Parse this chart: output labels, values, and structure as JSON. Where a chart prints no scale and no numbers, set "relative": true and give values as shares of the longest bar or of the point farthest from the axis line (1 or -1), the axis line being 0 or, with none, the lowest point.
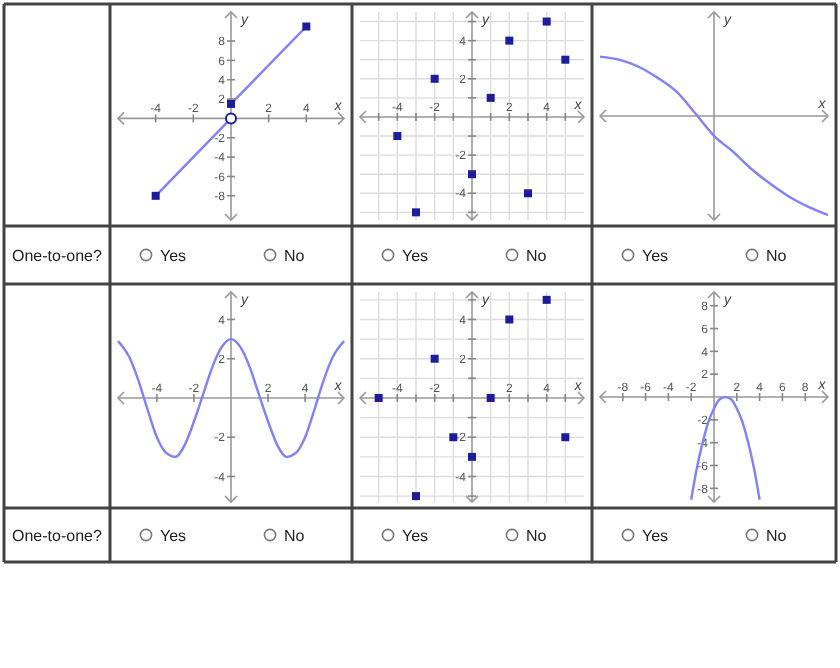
{
  "chart_data": [
    {
      "type": "line",
      "xlabel": "x",
      "ylabel": "y",
      "xlim": [
        -6,
        6
      ],
      "ylim": [
        -10.5,
        11
      ],
      "xticks": [
        -4,
        -2,
        2,
        4
      ],
      "yticks": [
        -8,
        -6,
        -4,
        -2,
        2,
        4,
        6,
        8
      ],
      "series": [
        {
          "type": "line",
          "color": "#8080ff",
          "x": [
            -4,
            0
          ],
          "values": [
            -8,
            0
          ],
          "marker": "none"
        },
        {
          "type": "line",
          "color": "#8080ff",
          "x": [
            0,
            4
          ],
          "values": [
            1.5,
            9.5
          ],
          "marker": "none"
        },
        {
          "type": "scatter",
          "color": "#1c1c9c",
          "x": [
            -4,
            0,
            4
          ],
          "values": [
            -8,
            1.5,
            9.5
          ],
          "marker": "square"
        },
        {
          "type": "scatter",
          "color": "#1c1c9c",
          "x": [
            0
          ],
          "values": [
            0
          ],
          "marker": "circle"
        }
      ],
      "annotations": [
        "One-to-one?",
        "Yes",
        "No"
      ]
    },
    {
      "type": "scatter",
      "xlabel": "x",
      "ylabel": "y",
      "grid": true,
      "xlim": [
        -6,
        6
      ],
      "ylim": [
        -5.4,
        5.5
      ],
      "xticks": [
        {
          "value": -5,
          "label": null
        },
        -4,
        {
          "value": -3,
          "label": null
        },
        -2,
        {
          "value": -1,
          "label": null
        },
        {
          "value": 1,
          "label": null
        },
        2,
        {
          "value": 3,
          "label": null
        },
        4,
        {
          "value": 5,
          "label": null
        }
      ],
      "yticks": [
        {
          "value": -5,
          "label": null
        },
        -4,
        {
          "value": -3,
          "label": null
        },
        -2,
        {
          "value": -1,
          "label": null
        },
        {
          "value": 1,
          "label": null
        },
        2,
        {
          "value": 3,
          "label": null
        },
        4,
        {
          "value": 5,
          "label": null
        }
      ],
      "series": [
        {
          "type": "scatter",
          "color": "#1c1c9c",
          "marker": "square",
          "x": [
            -4,
            -2,
            -3,
            0,
            1,
            2,
            4,
            5,
            3
          ],
          "values": [
            -1,
            2,
            -5,
            -3,
            1,
            4,
            5,
            3,
            -4
          ]
        }
      ],
      "annotations": [
        "Yes",
        "No"
      ]
    },
    {
      "type": "line",
      "relative": true,
      "xlabel": "x",
      "ylabel": "y",
      "categories": [
        null,
        null,
        null,
        null,
        null,
        null,
        null,
        null,
        null,
        null,
        null,
        null,
        null
      ],
      "values": [
        0.6,
        0.57,
        0.5,
        0.39,
        0.25,
        0.03,
        -0.2,
        -0.36,
        -0.54,
        -0.69,
        -0.82,
        -0.92,
        -1
      ],
      "color": "#8080ff",
      "annotations": [
        "Yes",
        "No"
      ]
    },
    {
      "type": "line",
      "xlabel": "x",
      "ylabel": "y",
      "xlim": [
        -6.1,
        6.1
      ],
      "ylim": [
        -5.3,
        5.4
      ],
      "xticks": [
        -4,
        -2,
        2,
        4
      ],
      "yticks": [
        -4,
        -2,
        2,
        4
      ],
      "series": [
        {
          "type": "line",
          "color": "#8080ff",
          "marker": "none",
          "x": [
            -6.1,
            -5.5,
            -5,
            -4.5,
            -4,
            -3.5,
            -3,
            -2.5,
            -2,
            -1.5,
            -1,
            -0.5,
            0,
            0.5,
            1,
            1.5,
            2,
            2.5,
            3,
            3.5,
            4,
            4.5,
            5,
            5.5,
            6.1
          ],
          "values": [
            2.9,
            2.1,
            0.9,
            -0.6,
            -2,
            -2.8,
            -3,
            -2.4,
            -1.2,
            0.2,
            1.6,
            2.6,
            3,
            2.6,
            1.6,
            0.2,
            -1.2,
            -2.4,
            -3,
            -2.8,
            -2,
            -0.6,
            0.9,
            2.1,
            2.9
          ]
        }
      ],
      "annotations": [
        "One-to-one?",
        "Yes",
        "No"
      ]
    },
    {
      "type": "scatter",
      "xlabel": "x",
      "ylabel": "y",
      "grid": true,
      "xlim": [
        -6,
        6
      ],
      "ylim": [
        -5.3,
        5.4
      ],
      "xticks": [
        {
          "value": -5,
          "label": null
        },
        -4,
        {
          "value": -3,
          "label": null
        },
        -2,
        {
          "value": -1,
          "label": null
        },
        {
          "value": 1,
          "label": null
        },
        2,
        {
          "value": 3,
          "label": null
        },
        4,
        {
          "value": 5,
          "label": null
        }
      ],
      "yticks": [
        {
          "value": -5,
          "label": null
        },
        -4,
        {
          "value": -3,
          "label": null
        },
        -2,
        {
          "value": -1,
          "label": null
        },
        {
          "value": 1,
          "label": null
        },
        2,
        {
          "value": 3,
          "label": null
        },
        4,
        {
          "value": 5,
          "label": null
        }
      ],
      "series": [
        {
          "type": "scatter",
          "color": "#1c1c9c",
          "marker": "square",
          "x": [
            -5,
            -2,
            -3,
            -1,
            0,
            1,
            2,
            4,
            5
          ],
          "values": [
            0,
            2,
            -5,
            -2,
            -3,
            0,
            4,
            5,
            -2
          ]
        }
      ],
      "annotations": [
        "Yes",
        "No"
      ]
    },
    {
      "type": "line",
      "xlabel": "x",
      "ylabel": "y",
      "xlim": [
        -10,
        10
      ],
      "ylim": [
        -9.2,
        9.2
      ],
      "xticks": [
        -8,
        -6,
        -4,
        -2,
        2,
        4,
        6,
        8
      ],
      "yticks": [
        -8,
        -6,
        -4,
        -2,
        2,
        4,
        6,
        8
      ],
      "series": [
        {
          "type": "line",
          "color": "#8080ff",
          "marker": "none",
          "x": [
            -2,
            -1.5,
            -1,
            -0.5,
            0,
            0.5,
            1,
            1.5,
            2,
            2.5,
            3,
            3.5,
            4
          ],
          "values": [
            -9,
            -6.2,
            -4,
            -2.2,
            -1,
            -0.2,
            0,
            -0.2,
            -1,
            -2.2,
            -4,
            -6.2,
            -9
          ]
        }
      ],
      "annotations": [
        "Yes",
        "No"
      ]
    }
  ]
}
